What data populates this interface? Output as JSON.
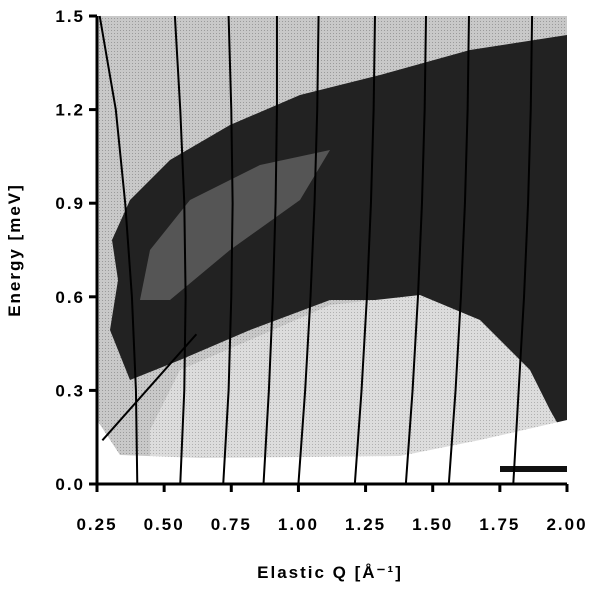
{
  "chart_data": {
    "type": "line",
    "xlabel": "Elastic Q [Å⁻¹]",
    "ylabel": "Energy  [meV]",
    "xlim": [
      0.25,
      2.0
    ],
    "ylim": [
      0.0,
      1.5
    ],
    "xticks": [
      {
        "value": 0.25,
        "label": "0.25"
      },
      {
        "value": 0.5,
        "label": "0.50"
      },
      {
        "value": 0.75,
        "label": "0.75"
      },
      {
        "value": 1.0,
        "label": "1.00"
      },
      {
        "value": 1.25,
        "label": "1.25"
      },
      {
        "value": 1.5,
        "label": "1.50"
      },
      {
        "value": 1.75,
        "label": "1.75"
      },
      {
        "value": 2.0,
        "label": "2.00"
      }
    ],
    "yticks": [
      {
        "value": 0.0,
        "label": "0.0"
      },
      {
        "value": 0.3,
        "label": "0.3"
      },
      {
        "value": 0.6,
        "label": "0.6"
      },
      {
        "value": 0.9,
        "label": "0.9"
      },
      {
        "value": 1.2,
        "label": "1.2"
      },
      {
        "value": 1.5,
        "label": "1.5"
      }
    ],
    "color": "#000000",
    "series": [
      {
        "x": [
          0.4,
          0.395,
          0.38,
          0.355,
          0.32,
          0.26
        ],
        "values": [
          0.0,
          0.3,
          0.6,
          0.9,
          1.2,
          1.5
        ]
      },
      {
        "x": [
          0.56,
          0.575,
          0.58,
          0.575,
          0.56,
          0.54
        ],
        "values": [
          0.0,
          0.3,
          0.6,
          0.9,
          1.2,
          1.5
        ]
      },
      {
        "x": [
          0.72,
          0.74,
          0.75,
          0.755,
          0.75,
          0.74
        ],
        "values": [
          0.0,
          0.3,
          0.6,
          0.9,
          1.2,
          1.5
        ]
      },
      {
        "x": [
          0.87,
          0.89,
          0.905,
          0.915,
          0.92,
          0.92
        ],
        "values": [
          0.0,
          0.3,
          0.6,
          0.9,
          1.2,
          1.5
        ]
      },
      {
        "x": [
          1.0,
          1.025,
          1.045,
          1.06,
          1.07,
          1.075
        ],
        "values": [
          0.0,
          0.3,
          0.6,
          0.9,
          1.2,
          1.5
        ]
      },
      {
        "x": [
          1.21,
          1.235,
          1.255,
          1.27,
          1.28,
          1.285
        ],
        "values": [
          0.0,
          0.3,
          0.6,
          0.9,
          1.2,
          1.5
        ]
      },
      {
        "x": [
          1.4,
          1.425,
          1.445,
          1.46,
          1.47,
          1.475
        ],
        "values": [
          0.0,
          0.3,
          0.6,
          0.9,
          1.2,
          1.5
        ]
      },
      {
        "x": [
          1.56,
          1.585,
          1.605,
          1.62,
          1.63,
          1.635
        ],
        "values": [
          0.0,
          0.3,
          0.6,
          0.9,
          1.2,
          1.5
        ]
      },
      {
        "x": [
          1.8,
          1.82,
          1.84,
          1.855,
          1.865,
          1.87
        ],
        "values": [
          0.0,
          0.3,
          0.6,
          0.9,
          1.2,
          1.5
        ]
      },
      {
        "x": [
          0.27,
          0.62
        ],
        "values": [
          0.14,
          0.48
        ]
      }
    ]
  }
}
